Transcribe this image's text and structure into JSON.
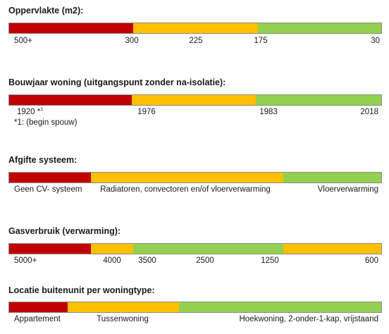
{
  "colors": {
    "red": "#c00000",
    "orange": "#ffc000",
    "green": "#92d050"
  },
  "sections": [
    {
      "title": "Oppervlakte (m2):",
      "segments": [
        {
          "color": "red",
          "fraction": 0.334
        },
        {
          "color": "orange",
          "fraction": 0.334
        },
        {
          "color": "green",
          "fraction": 0.332
        }
      ],
      "labels": [
        "500+",
        "300",
        "225",
        "175",
        "30"
      ]
    },
    {
      "title": "Bouwjaar woning (uitgangspunt zonder na-isolatie):",
      "segments": [
        {
          "color": "red",
          "fraction": 0.33
        },
        {
          "color": "orange",
          "fraction": 0.332
        },
        {
          "color": "green",
          "fraction": 0.338
        }
      ],
      "labels": [
        "1920 *",
        "1976",
        "1983",
        "2018"
      ],
      "footnote_mark": "1",
      "footnote": "*1: (begin spouw)"
    },
    {
      "title": "Afgifte systeem:",
      "segments": [
        {
          "color": "red",
          "fraction": 0.219
        },
        {
          "color": "orange",
          "fraction": 0.517
        },
        {
          "color": "green",
          "fraction": 0.264
        }
      ],
      "labels": [
        "Geen CV- systeem",
        "Radiatoren, convectoren en/of vloerverwarming",
        "Vloerverwarming"
      ]
    },
    {
      "title": "Gasverbruik (verwarming):",
      "segments": [
        {
          "color": "red",
          "fraction": 0.219
        },
        {
          "color": "orange",
          "fraction": 0.115
        },
        {
          "color": "green",
          "fraction": 0.402
        },
        {
          "color": "orange",
          "fraction": 0.264
        }
      ],
      "labels": [
        "5000+",
        "4000",
        "3500",
        "2500",
        "1250",
        "600"
      ]
    },
    {
      "title": "Locatie buitenunit per woningtype:",
      "segments": [
        {
          "color": "red",
          "fraction": 0.157
        },
        {
          "color": "orange",
          "fraction": 0.3
        },
        {
          "color": "green",
          "fraction": 0.543
        }
      ],
      "labels": [
        "Appartement",
        "Tussenwoning",
        "Hoekwoning, 2-onder-1-kap, vrijstaand"
      ]
    }
  ]
}
